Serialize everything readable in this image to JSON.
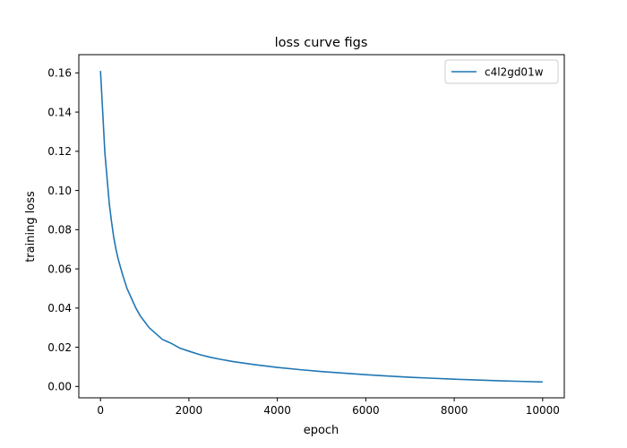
{
  "chart_data": {
    "type": "line",
    "title": "loss curve figs",
    "xlabel": "epoch",
    "ylabel": "training loss",
    "xlim": [
      -490,
      10490
    ],
    "ylim": [
      -0.0058,
      0.1693
    ],
    "xticks": [
      0,
      2000,
      4000,
      6000,
      8000,
      10000
    ],
    "xtick_labels": [
      "0",
      "2000",
      "4000",
      "6000",
      "8000",
      "10000"
    ],
    "yticks": [
      0.0,
      0.02,
      0.04,
      0.06,
      0.08,
      0.1,
      0.12,
      0.14,
      0.16
    ],
    "ytick_labels": [
      "0.00",
      "0.02",
      "0.04",
      "0.06",
      "0.08",
      "0.10",
      "0.12",
      "0.14",
      "0.16"
    ],
    "grid": false,
    "legend_position": "upper right",
    "series": [
      {
        "name": "c4l2gd01w",
        "color": "#1f77b4",
        "x": [
          0,
          50,
          100,
          150,
          200,
          250,
          300,
          350,
          400,
          450,
          500,
          600,
          700,
          800,
          900,
          1000,
          1100,
          1200,
          1300,
          1400,
          1500,
          1600,
          1800,
          2000,
          2250,
          2500,
          2750,
          3000,
          3250,
          3500,
          3750,
          4000,
          4500,
          5000,
          5500,
          6000,
          6500,
          7000,
          7500,
          8000,
          8500,
          9000,
          9500,
          10000
        ],
        "y": [
          0.161,
          0.14,
          0.119,
          0.106,
          0.093,
          0.084,
          0.076,
          0.07,
          0.065,
          0.061,
          0.057,
          0.05,
          0.045,
          0.04,
          0.036,
          0.033,
          0.03,
          0.028,
          0.026,
          0.024,
          0.023,
          0.022,
          0.0195,
          0.018,
          0.0162,
          0.0148,
          0.0137,
          0.0127,
          0.0119,
          0.0111,
          0.0104,
          0.0097,
          0.0086,
          0.0076,
          0.0068,
          0.006,
          0.0053,
          0.0047,
          0.0042,
          0.0037,
          0.0033,
          0.0029,
          0.0026,
          0.0023
        ]
      }
    ]
  }
}
